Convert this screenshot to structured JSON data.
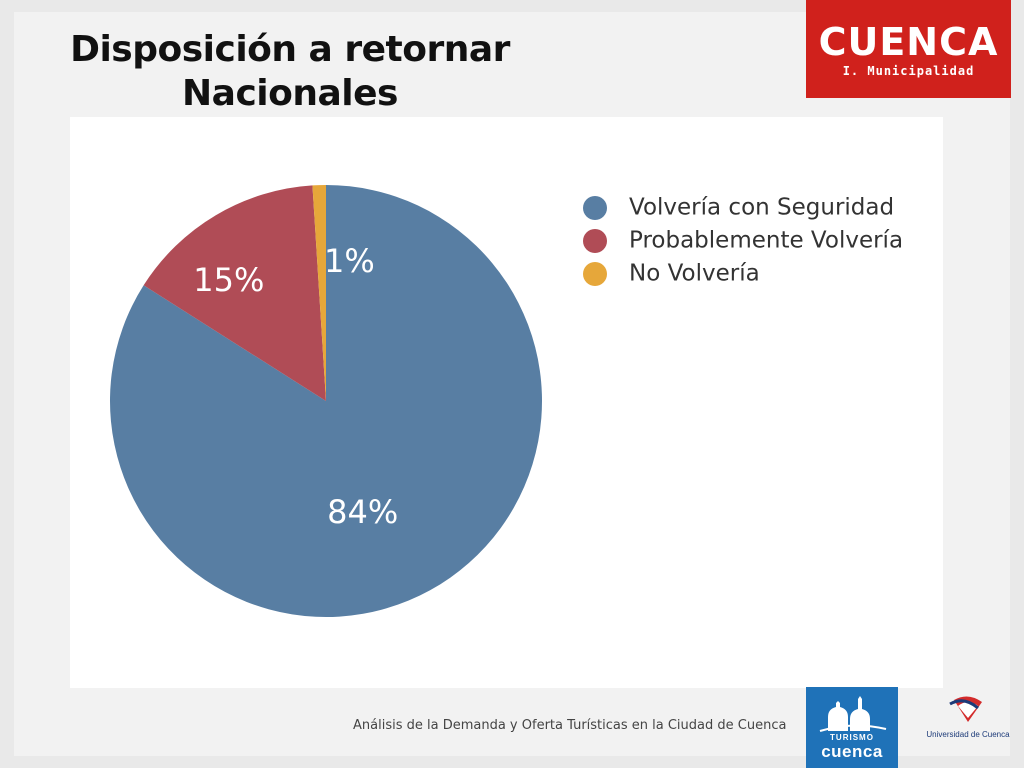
{
  "slide": {
    "title_line1": "Disposición a retornar",
    "title_line2": "Nacionales",
    "footer": "Análisis de la Demanda y Oferta Turísticas en la Ciudad de Cuenca"
  },
  "logos": {
    "cuenca_word": "CUENCA",
    "cuenca_sub": "I. Municipalidad",
    "cuenca_color": "#d0211c",
    "turismo_word": "TURISMO",
    "turismo_city": "cuenca",
    "turismo_color": "#1f72b8",
    "university": "Universidad de Cuenca"
  },
  "chart_data": {
    "type": "pie",
    "categories": [
      "Volvería con Seguridad",
      "Probablemente Volvería",
      "No Volvería"
    ],
    "values": [
      84,
      15,
      1
    ],
    "labels": [
      "84%",
      "15%",
      "1%"
    ],
    "colors": [
      "#587ea3",
      "#b04c56",
      "#e6a73a"
    ],
    "legend_position": "right"
  }
}
